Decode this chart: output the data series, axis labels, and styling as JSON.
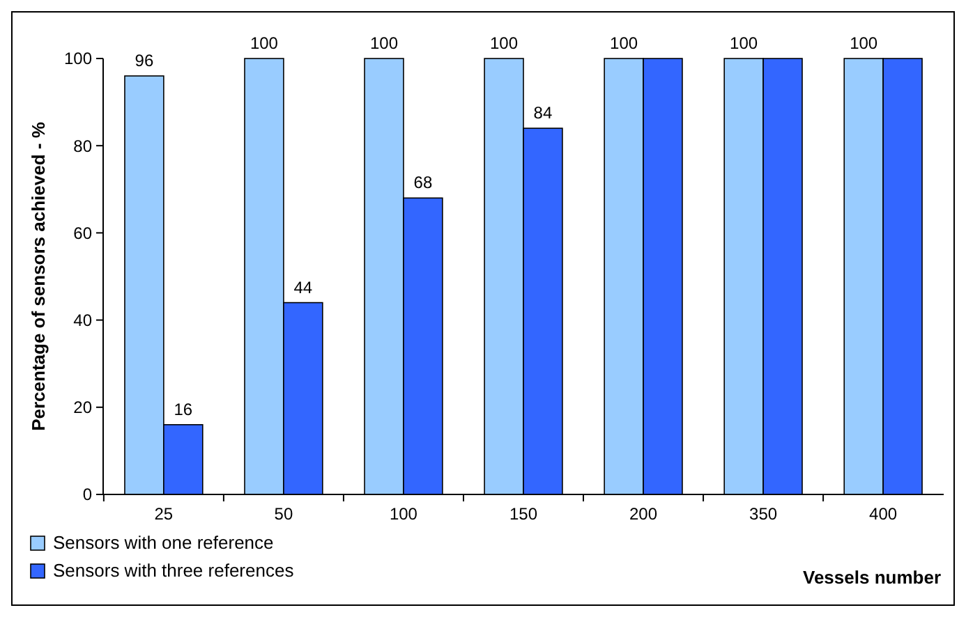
{
  "chart_data": {
    "type": "bar",
    "xlabel": "Vessels number",
    "ylabel": "Percentage of sensors achieved - %",
    "categories": [
      "25",
      "50",
      "100",
      "150",
      "200",
      "350",
      "400"
    ],
    "series": [
      {
        "name": "Sensors with one reference",
        "color": "#99ccff",
        "values": [
          96,
          100,
          100,
          100,
          100,
          100,
          100
        ],
        "value_labels": [
          "96",
          "100",
          "100",
          "100",
          "100",
          "100",
          "100"
        ]
      },
      {
        "name": "Sensors with three references",
        "color": "#3366ff",
        "values": [
          16,
          44,
          68,
          84,
          100,
          100,
          100
        ],
        "value_labels": [
          "16",
          "44",
          "68",
          "84",
          null,
          null,
          null
        ]
      }
    ],
    "ylim": [
      0,
      100
    ],
    "yticks": [
      0,
      20,
      40,
      60,
      80,
      100
    ],
    "grid": false,
    "legend": "bottom left"
  }
}
